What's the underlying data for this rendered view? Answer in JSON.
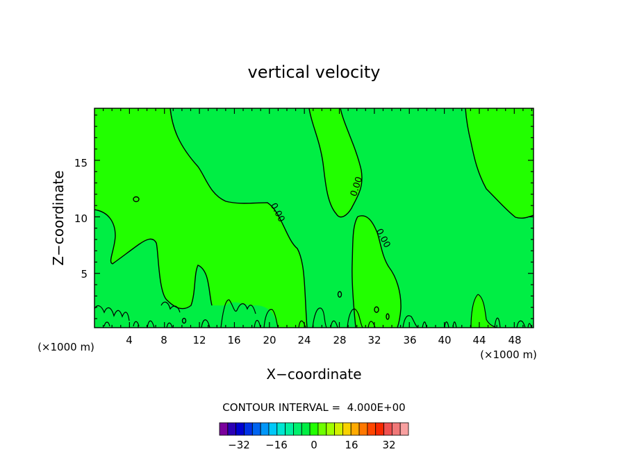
{
  "chart_data": {
    "type": "contour",
    "title": "vertical velocity",
    "xlabel": "X−coordinate",
    "ylabel": "Z−coordinate",
    "x_unit_left": "(×1000 m)",
    "x_unit_right": "(×1000 m)",
    "xlim": [
      0,
      50.2
    ],
    "ylim": [
      0.2,
      19.6
    ],
    "x_ticks": [
      "4",
      "8",
      "12",
      "16",
      "20",
      "24",
      "28",
      "32",
      "36",
      "40",
      "44",
      "48"
    ],
    "y_ticks": [
      "5",
      "10",
      "15"
    ],
    "contour_label": "0.00",
    "contour_interval_text": "CONTOUR INTERVAL =  4.000E+00",
    "colorbar_ticks": [
      "−32",
      "−16",
      "0",
      "16",
      "32"
    ],
    "colors": {
      "positive_fill": "#22ff00",
      "negative_fill": "#00ee44",
      "contour_line": "#000000"
    },
    "colorbar_colors": [
      "#7a009c",
      "#2b00b4",
      "#0000d0",
      "#0032e6",
      "#0064f0",
      "#0096f8",
      "#00c8f8",
      "#00e6d2",
      "#00f0a0",
      "#00f06e",
      "#00ee44",
      "#22ff00",
      "#6eff00",
      "#a0ff00",
      "#d2f000",
      "#f8d200",
      "#ffaa00",
      "#ff7800",
      "#ff4600",
      "#f82800",
      "#f05050",
      "#f07878",
      "#f8a0a0"
    ]
  }
}
